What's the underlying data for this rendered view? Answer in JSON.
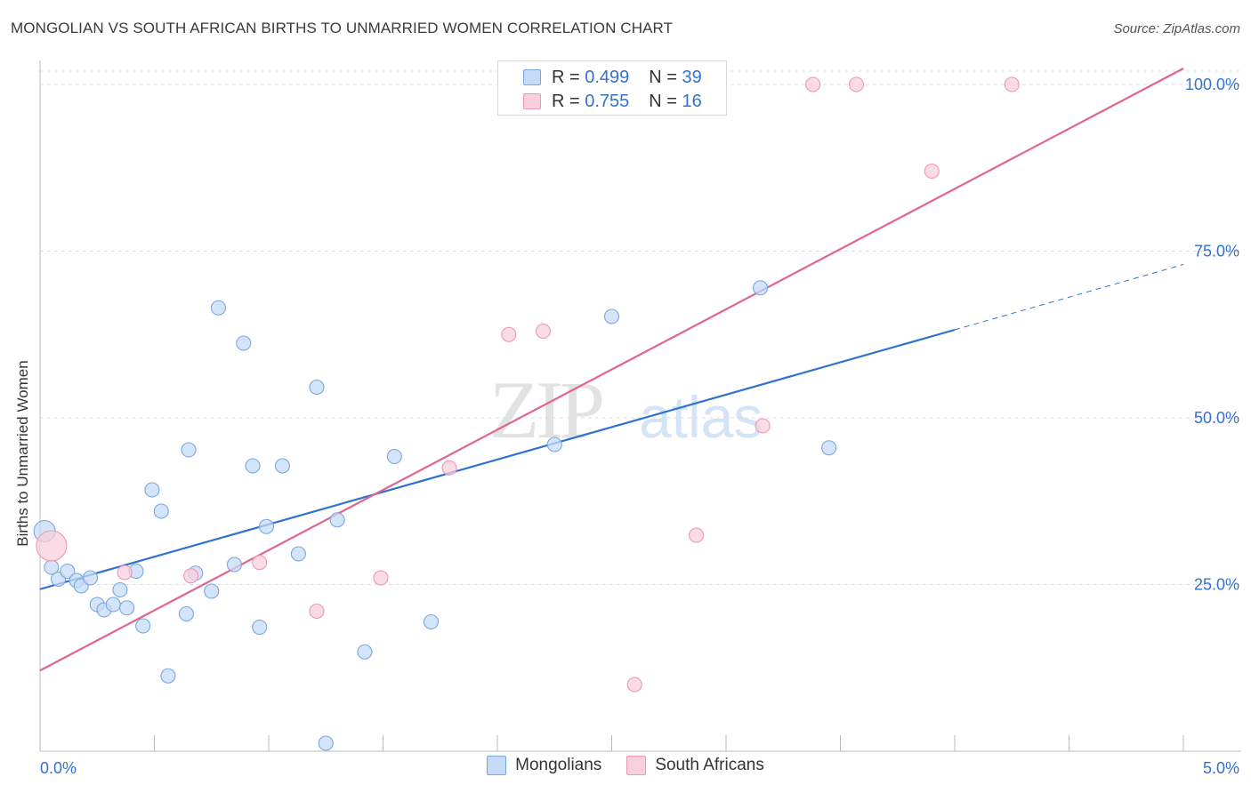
{
  "title": "MONGOLIAN VS SOUTH AFRICAN BIRTHS TO UNMARRIED WOMEN CORRELATION CHART",
  "source": "Source: ZipAtlas.com",
  "watermark": {
    "zip": "ZIP",
    "atlas": "atlas"
  },
  "legend_top": {
    "r_label": "R =",
    "n_label": "N =",
    "rows": [
      {
        "r": "0.499",
        "n": "39"
      },
      {
        "r": "0.755",
        "n": "16"
      }
    ]
  },
  "chart_data": {
    "type": "scatter",
    "title": "MONGOLIAN VS SOUTH AFRICAN BIRTHS TO UNMARRIED WOMEN CORRELATION CHART",
    "xlabel": "",
    "ylabel": "Births to Unmarried Women",
    "xlim": [
      0,
      5
    ],
    "ylim": [
      0,
      102
    ],
    "x_tick_labels": [
      "0.0%",
      "5.0%"
    ],
    "y_ticks": [
      25,
      50,
      75,
      100
    ],
    "y_tick_labels": [
      "25.0%",
      "50.0%",
      "75.0%",
      "100.0%"
    ],
    "grid": true,
    "series": [
      {
        "name": "Mongolians",
        "color": "#7aa6e0",
        "fill": "#c6dbf7",
        "line_color": "#2f72cf",
        "trend": {
          "x0": 0,
          "y0": 24.3,
          "x1": 4.0,
          "y1": 63.2,
          "dash_to_x": 5.0,
          "dash_to_y": 73.0
        },
        "points": [
          [
            0.02,
            33.0
          ],
          [
            0.05,
            27.6
          ],
          [
            0.08,
            25.8
          ],
          [
            0.12,
            27.0
          ],
          [
            0.16,
            25.6
          ],
          [
            0.18,
            24.8
          ],
          [
            0.22,
            26.0
          ],
          [
            0.25,
            22.0
          ],
          [
            0.28,
            21.2
          ],
          [
            0.32,
            22.0
          ],
          [
            0.35,
            24.2
          ],
          [
            0.38,
            21.5
          ],
          [
            0.42,
            27.0
          ],
          [
            0.45,
            18.8
          ],
          [
            0.49,
            39.2
          ],
          [
            0.53,
            36.0
          ],
          [
            0.56,
            11.3
          ],
          [
            0.64,
            20.6
          ],
          [
            0.65,
            45.2
          ],
          [
            0.68,
            26.7
          ],
          [
            0.75,
            24.0
          ],
          [
            0.78,
            66.5
          ],
          [
            0.85,
            28.0
          ],
          [
            0.89,
            61.2
          ],
          [
            0.93,
            42.8
          ],
          [
            0.96,
            18.6
          ],
          [
            0.99,
            33.7
          ],
          [
            1.06,
            42.8
          ],
          [
            1.13,
            29.6
          ],
          [
            1.21,
            54.6
          ],
          [
            1.25,
            1.2
          ],
          [
            1.3,
            34.7
          ],
          [
            1.42,
            14.9
          ],
          [
            1.55,
            44.2
          ],
          [
            1.71,
            19.4
          ],
          [
            2.25,
            46.0
          ],
          [
            2.5,
            65.2
          ],
          [
            3.15,
            69.5
          ],
          [
            3.45,
            45.5
          ]
        ]
      },
      {
        "name": "South Africans",
        "color": "#ec98b4",
        "fill": "#f9cfdc",
        "line_color": "#e0658f",
        "trend": {
          "x0": 0,
          "y0": 12.1,
          "x1": 5.0,
          "y1": 102.4
        },
        "points": [
          [
            0.05,
            30.8
          ],
          [
            0.37,
            26.8
          ],
          [
            0.66,
            26.3
          ],
          [
            0.96,
            28.3
          ],
          [
            1.21,
            21.0
          ],
          [
            1.49,
            26.0
          ],
          [
            1.79,
            42.5
          ],
          [
            2.05,
            62.5
          ],
          [
            2.2,
            63.0
          ],
          [
            2.6,
            10.0
          ],
          [
            2.87,
            32.4
          ],
          [
            3.16,
            48.8
          ],
          [
            3.38,
            100.0
          ],
          [
            3.57,
            100.0
          ],
          [
            3.9,
            87.0
          ],
          [
            4.25,
            100.0
          ]
        ]
      }
    ]
  },
  "legend_bottom": [
    "Mongolians",
    "South Africans"
  ],
  "colors": {
    "blue_text": "#3370d0",
    "grid": "#dcdcdc",
    "axis": "#bbbbbb"
  }
}
